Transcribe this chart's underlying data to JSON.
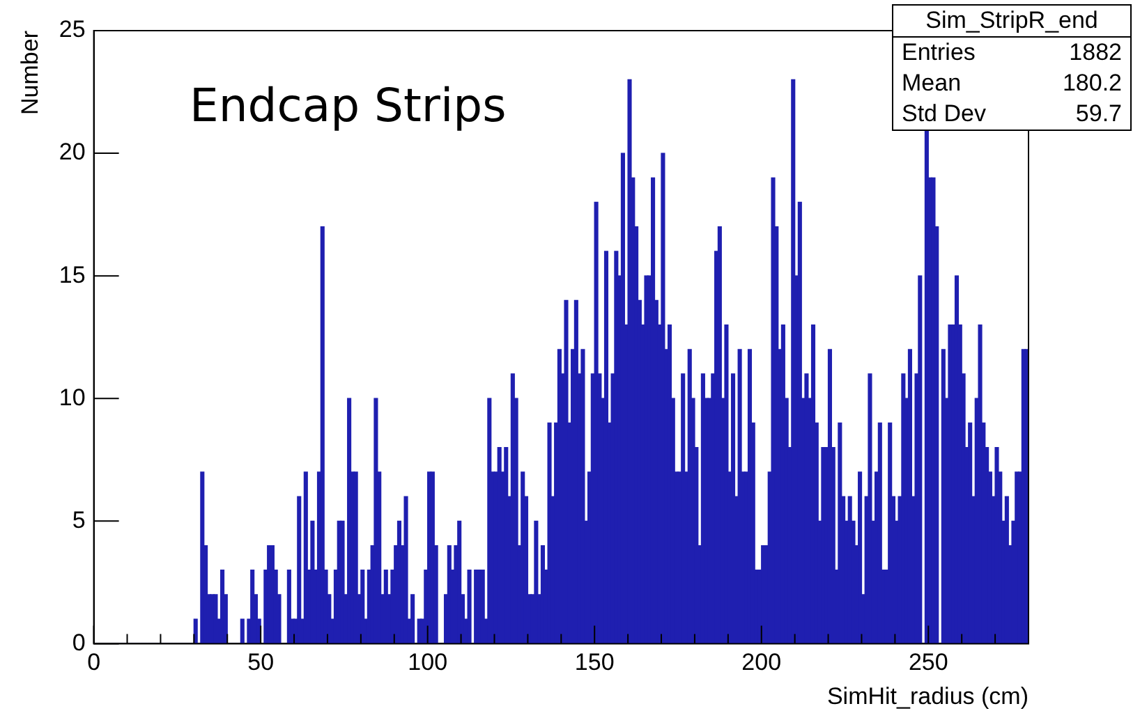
{
  "chart_data": {
    "type": "histogram",
    "title": "Endcap Strips",
    "xlabel": "SimHit_radius (cm)",
    "ylabel": "Number",
    "annotations": [
      "Sim_StripR_end",
      "Entries",
      "1882",
      "Mean",
      "180.2",
      "Std Dev",
      "59.7"
    ],
    "color": "#1f1fb0",
    "grid": false,
    "legend": false,
    "xlim": [
      0,
      280
    ],
    "ylim": [
      0,
      25
    ],
    "xticks": [
      0,
      {
        "value": 10,
        "label": null
      },
      {
        "value": 20,
        "label": null
      },
      {
        "value": 30,
        "label": null
      },
      {
        "value": 40,
        "label": null
      },
      50,
      {
        "value": 60,
        "label": null
      },
      {
        "value": 70,
        "label": null
      },
      {
        "value": 80,
        "label": null
      },
      {
        "value": 90,
        "label": null
      },
      100,
      {
        "value": 110,
        "label": null
      },
      {
        "value": 120,
        "label": null
      },
      {
        "value": 130,
        "label": null
      },
      {
        "value": 140,
        "label": null
      },
      150,
      {
        "value": 160,
        "label": null
      },
      {
        "value": 170,
        "label": null
      },
      {
        "value": 180,
        "label": null
      },
      {
        "value": 190,
        "label": null
      },
      200,
      {
        "value": 210,
        "label": null
      },
      {
        "value": 220,
        "label": null
      },
      {
        "value": 230,
        "label": null
      },
      {
        "value": 240,
        "label": null
      },
      250,
      {
        "value": 260,
        "label": null
      },
      {
        "value": 270,
        "label": null
      }
    ],
    "yticks": [
      0,
      5,
      10,
      15,
      20,
      25
    ],
    "bins": [
      0,
      1,
      2,
      3,
      4,
      5,
      6,
      7,
      8,
      9,
      10,
      11,
      12,
      13,
      14,
      15,
      16,
      17,
      18,
      19,
      20,
      21,
      22,
      23,
      24,
      25,
      26,
      27,
      28,
      29,
      30,
      31,
      32,
      33,
      34,
      35,
      36,
      37,
      38,
      39,
      40,
      41,
      42,
      43,
      44,
      45,
      46,
      47,
      48,
      49,
      50,
      51,
      52,
      53,
      54,
      55,
      56,
      57,
      58,
      59,
      60,
      61,
      62,
      63,
      64,
      65,
      66,
      67,
      68,
      69,
      70,
      71,
      72,
      73,
      74,
      75,
      76,
      77,
      78,
      79,
      80,
      81,
      82,
      83,
      84,
      85,
      86,
      87,
      88,
      89,
      90,
      91,
      92,
      93,
      94,
      95,
      96,
      97,
      98,
      99,
      100,
      101,
      102,
      103,
      104,
      105,
      106,
      107,
      108,
      109,
      110,
      111,
      112,
      113,
      114,
      115,
      116,
      117,
      118,
      119,
      120,
      121,
      122,
      123,
      124,
      125,
      126,
      127,
      128,
      129,
      130,
      131,
      132,
      133,
      134,
      135,
      136,
      137,
      138,
      139,
      140,
      141,
      142,
      143,
      144,
      145,
      146,
      147,
      148,
      149,
      150,
      151,
      152,
      153,
      154,
      155,
      156,
      157,
      158,
      159,
      160,
      161,
      162,
      163,
      164,
      165,
      166,
      167,
      168,
      169,
      170,
      171,
      172,
      173,
      174,
      175,
      176,
      177,
      178,
      179,
      180,
      181,
      182,
      183,
      184,
      185,
      186,
      187,
      188,
      189,
      190,
      191,
      192,
      193,
      194,
      195,
      196,
      197,
      198,
      199,
      200,
      201,
      202,
      203,
      204,
      205,
      206,
      207,
      208,
      209,
      210,
      211,
      212,
      213,
      214,
      215,
      216,
      217,
      218,
      219,
      220,
      221,
      222,
      223,
      224,
      225,
      226,
      227,
      228,
      229,
      230,
      231,
      232,
      233,
      234,
      235,
      236,
      237,
      238,
      239,
      240,
      241,
      242,
      243,
      244,
      245,
      246,
      247,
      248,
      249,
      250,
      251,
      252,
      253,
      254,
      255,
      256,
      257,
      258,
      259,
      260,
      261,
      262,
      263,
      264,
      265,
      266,
      267,
      268,
      269,
      270,
      271,
      272,
      273,
      274,
      275,
      276,
      277,
      278,
      279,
      280
    ],
    "values": [
      0,
      0,
      0,
      0,
      0,
      0,
      0,
      0,
      0,
      0,
      0,
      0,
      0,
      0,
      0,
      0,
      0,
      0,
      0,
      0,
      0,
      0,
      0,
      0,
      0,
      0,
      0,
      0,
      0,
      0,
      1,
      0,
      7,
      4,
      2,
      2,
      2,
      1,
      3,
      2,
      0,
      0,
      0,
      0,
      1,
      0,
      1,
      3,
      2,
      1,
      0,
      3,
      4,
      4,
      3,
      2,
      0,
      0,
      3,
      1,
      1,
      6,
      1,
      7,
      3,
      5,
      3,
      7,
      17,
      3,
      2,
      1,
      3,
      5,
      5,
      2,
      10,
      7,
      7,
      2,
      3,
      1,
      3,
      4,
      10,
      7,
      2,
      3,
      2,
      3,
      4,
      5,
      4,
      6,
      1,
      2,
      0,
      1,
      1,
      3,
      7,
      7,
      4,
      0,
      0,
      2,
      4,
      3,
      4,
      5,
      2,
      1,
      3,
      0,
      3,
      3,
      3,
      1,
      10,
      7,
      7,
      8,
      7,
      8,
      6,
      11,
      10,
      4,
      7,
      6,
      2,
      2,
      5,
      2,
      4,
      3,
      9,
      6,
      9,
      12,
      11,
      14,
      9,
      12,
      14,
      11,
      12,
      5,
      7,
      11,
      18,
      11,
      10,
      16,
      9,
      11,
      16,
      15,
      20,
      13,
      23,
      19,
      17,
      14,
      13,
      15,
      15,
      19,
      14,
      13,
      20,
      12,
      13,
      10,
      7,
      7,
      11,
      7,
      12,
      10,
      8,
      4,
      11,
      10,
      10,
      11,
      16,
      17,
      10,
      13,
      7,
      11,
      6,
      12,
      7,
      7,
      12,
      9,
      3,
      3,
      4,
      4,
      7,
      19,
      17,
      12,
      13,
      10,
      8,
      23,
      15,
      18,
      10,
      11,
      10,
      13,
      9,
      5,
      8,
      8,
      12,
      8,
      3,
      9,
      6,
      5,
      6,
      5,
      4,
      7,
      2,
      6,
      11,
      5,
      7,
      9,
      3,
      3,
      9,
      6,
      5,
      6,
      11,
      10,
      12,
      6,
      11,
      15,
      null,
      21,
      19,
      19,
      17,
      null,
      12,
      10,
      13,
      13,
      15,
      13,
      11,
      8,
      9,
      6,
      10,
      13,
      9,
      8,
      7,
      6,
      8,
      7,
      5,
      6,
      4,
      5,
      7,
      7,
      12,
      12
    ]
  }
}
